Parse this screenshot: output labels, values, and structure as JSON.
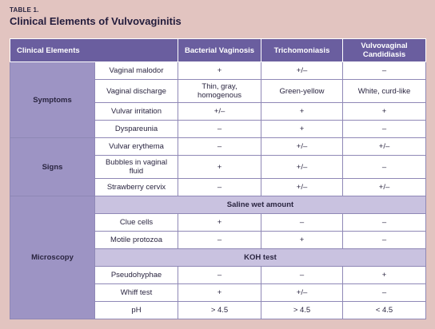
{
  "caption": {
    "label": "TABLE 1.",
    "title": "Clinical Elements of Vulvovaginitis"
  },
  "headers": {
    "element": "Clinical Elements",
    "bv": "Bacterial Vaginosis",
    "trich": "Trichomoniasis",
    "cand": "Vulvovaginal Candidiasis"
  },
  "groups": {
    "symptoms": "Symptoms",
    "signs": "Signs",
    "microscopy": "Microscopy"
  },
  "subheads": {
    "saline": "Saline wet amount",
    "koh": "KOH test"
  },
  "rows": [
    {
      "name": "Vaginal malodor",
      "bv": "+",
      "trich": "+/–",
      "cand": "–"
    },
    {
      "name": "Vaginal discharge",
      "bv": "Thin, gray, homogenous",
      "trich": "Green-yellow",
      "cand": "White, curd-like"
    },
    {
      "name": "Vulvar irritation",
      "bv": "+/–",
      "trich": "+",
      "cand": "+"
    },
    {
      "name": "Dyspareunia",
      "bv": "–",
      "trich": "+",
      "cand": "–"
    },
    {
      "name": "Vulvar erythema",
      "bv": "–",
      "trich": "+/–",
      "cand": "+/–"
    },
    {
      "name": "Bubbles in vaginal fluid",
      "bv": "+",
      "trich": "+/–",
      "cand": "–"
    },
    {
      "name": "Strawberry cervix",
      "bv": "–",
      "trich": "+/–",
      "cand": "+/–"
    },
    {
      "name": "Clue cells",
      "bv": "+",
      "trich": "–",
      "cand": "–"
    },
    {
      "name": "Motile protozoa",
      "bv": "–",
      "trich": "+",
      "cand": "–"
    },
    {
      "name": "Pseudohyphae",
      "bv": "–",
      "trich": "–",
      "cand": "+"
    },
    {
      "name": "Whiff test",
      "bv": "+",
      "trich": "+/–",
      "cand": "–"
    },
    {
      "name": "pH",
      "bv": "> 4.5",
      "trich": "> 4.5",
      "cand": "< 4.5"
    }
  ]
}
